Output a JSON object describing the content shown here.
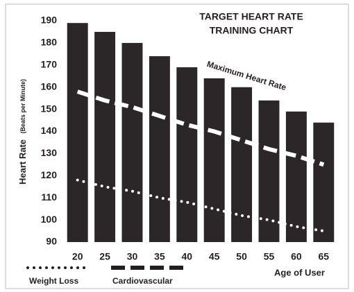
{
  "chart_data": {
    "type": "bar",
    "title": [
      "TARGET HEART RATE",
      "TRAINING CHART"
    ],
    "y_label": [
      "Heart Rate",
      "(Beats per Minute)"
    ],
    "x_label": "Age of User",
    "annotation": "Maximum Heart Rate",
    "categories": [
      "20",
      "25",
      "30",
      "35",
      "40",
      "45",
      "50",
      "55",
      "60",
      "65"
    ],
    "values": [
      189,
      185,
      180,
      174,
      169,
      164,
      160,
      154,
      149,
      144
    ],
    "color": "#2b2627",
    "series": [
      {
        "name": "Weight Loss",
        "style": "dotted",
        "color": "#ffffff",
        "values": [
          118,
          115,
          113,
          110,
          108,
          105,
          102,
          100,
          97,
          95
        ]
      },
      {
        "name": "Cardiovascular",
        "style": "dashed",
        "color": "#ffffff",
        "values": [
          158,
          154,
          151,
          147,
          143,
          140,
          136,
          132,
          129,
          125
        ]
      }
    ],
    "ylim": [
      90,
      190
    ],
    "yticks": [
      90,
      100,
      110,
      120,
      130,
      140,
      150,
      160,
      170,
      180,
      190
    ],
    "grid": false
  }
}
